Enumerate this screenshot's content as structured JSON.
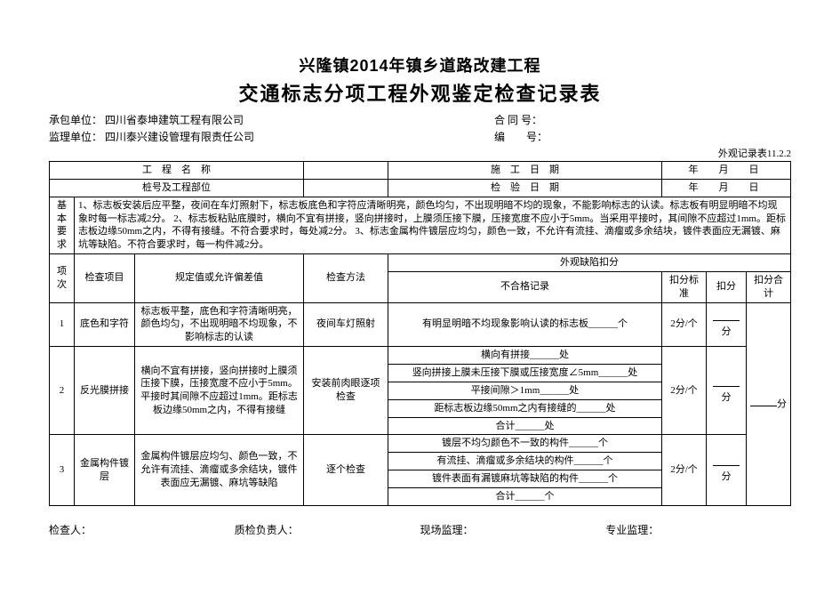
{
  "title1": "兴隆镇2014年镇乡道路改建工程",
  "title2": "交通标志分项工程外观鉴定检查记录表",
  "meta": {
    "contractor_label": "承包单位：",
    "contractor_value": "四川省泰坤建筑工程有限公司",
    "supervisor_label": "监理单位：",
    "supervisor_value": "四川泰兴建设管理有限责任公司",
    "contract_no_label": "合 同 号：",
    "serial_no_label": "编　　号："
  },
  "form_code": "外观记录表11.2.2",
  "header": {
    "proj_name": "工　程　名　称",
    "cons_date": "施　工　日　期",
    "stake": "桩号及工程部位",
    "insp_date": "检　验　日　期",
    "date_text": "年　月　日"
  },
  "basic_req_label": "基本要求",
  "basic_req_text": "1、标志板安装后应平整，夜间在车灯照射下，标志板底色和字符应清晰明亮，颜色均匀，不出现明暗不均的现象，不能影响标志的认读。标志板有明显明暗不均现象时每一标志减2分。 2、标志板粘贴底膜时，横向不宜有拼接，竖向拼接时，上膜须压接下膜，压接宽度不应小于5mm。当采用平接时，其间隙不应超过1mm。距标志板边缘50mm之内，不得有接缝。不符合要求时，每处减2分。 3、标志金属构件镀层应均匀，颜色一致，不允许有流挂、滴瘤或多余结块，镀件表面应无漏镀、麻坑等缺陷。不符合要求时，每一构件减2分。",
  "cols": {
    "seq": "项次",
    "item": "检查项目",
    "spec": "规定值或允许偏差值",
    "method": "检查方法",
    "defect_title": "外观缺陷扣分",
    "defect_rec": "不合格记录",
    "std": "扣分标准",
    "ded": "扣分",
    "sum": "扣分合计"
  },
  "rows": [
    {
      "seq": "1",
      "item": "底色和字符",
      "spec": "标志板平整，底色和字符清晰明亮，颜色均匀，不出现明暗不均现象，不影响标志的认读",
      "method": "夜间车灯照射",
      "defects": [
        "有明显明暗不均现象影响认读的标志板______个"
      ],
      "std": "2分/个",
      "ded": "分"
    },
    {
      "seq": "2",
      "item": "反光膜拼接",
      "spec": "横向不宜有拼接，竖向拼接时上膜须压接下膜，压接宽度不应小于5mm。平接时其间隙不应超过1mm。距标志板边缘50mm之内，不得有接缝",
      "method": "安装前肉眼逐项检查",
      "defects": [
        "横向有拼接______处",
        "竖向拼接上膜未压接下膜或压接宽度∠5mm______处",
        "平接间隙＞1mm______处",
        "距标志板边缘50mm之内有接缝的______处",
        "合计______处"
      ],
      "std": "2分/个",
      "ded": "分"
    },
    {
      "seq": "3",
      "item": "金属构件镀层",
      "spec": "金属构件镀层应均匀、颜色一致，不允许有流挂、滴瘤或多余结块，镀件表面应无漏镀、麻坑等缺陷",
      "method": "逐个检查",
      "defects": [
        "镀层不均匀颜色不一致的构件______个",
        "有流挂、滴瘤或多余结块的构件______个",
        "镀件表面有漏镀麻坑等缺陷的构件______个",
        "合计______个"
      ],
      "std": "2分/个",
      "ded": "分"
    }
  ],
  "footer": {
    "inspector": "检查人：",
    "qc": "质检负责人：",
    "site_supervisor": "现场监理：",
    "pro_supervisor": "专业监理："
  },
  "sum_suffix": "分"
}
